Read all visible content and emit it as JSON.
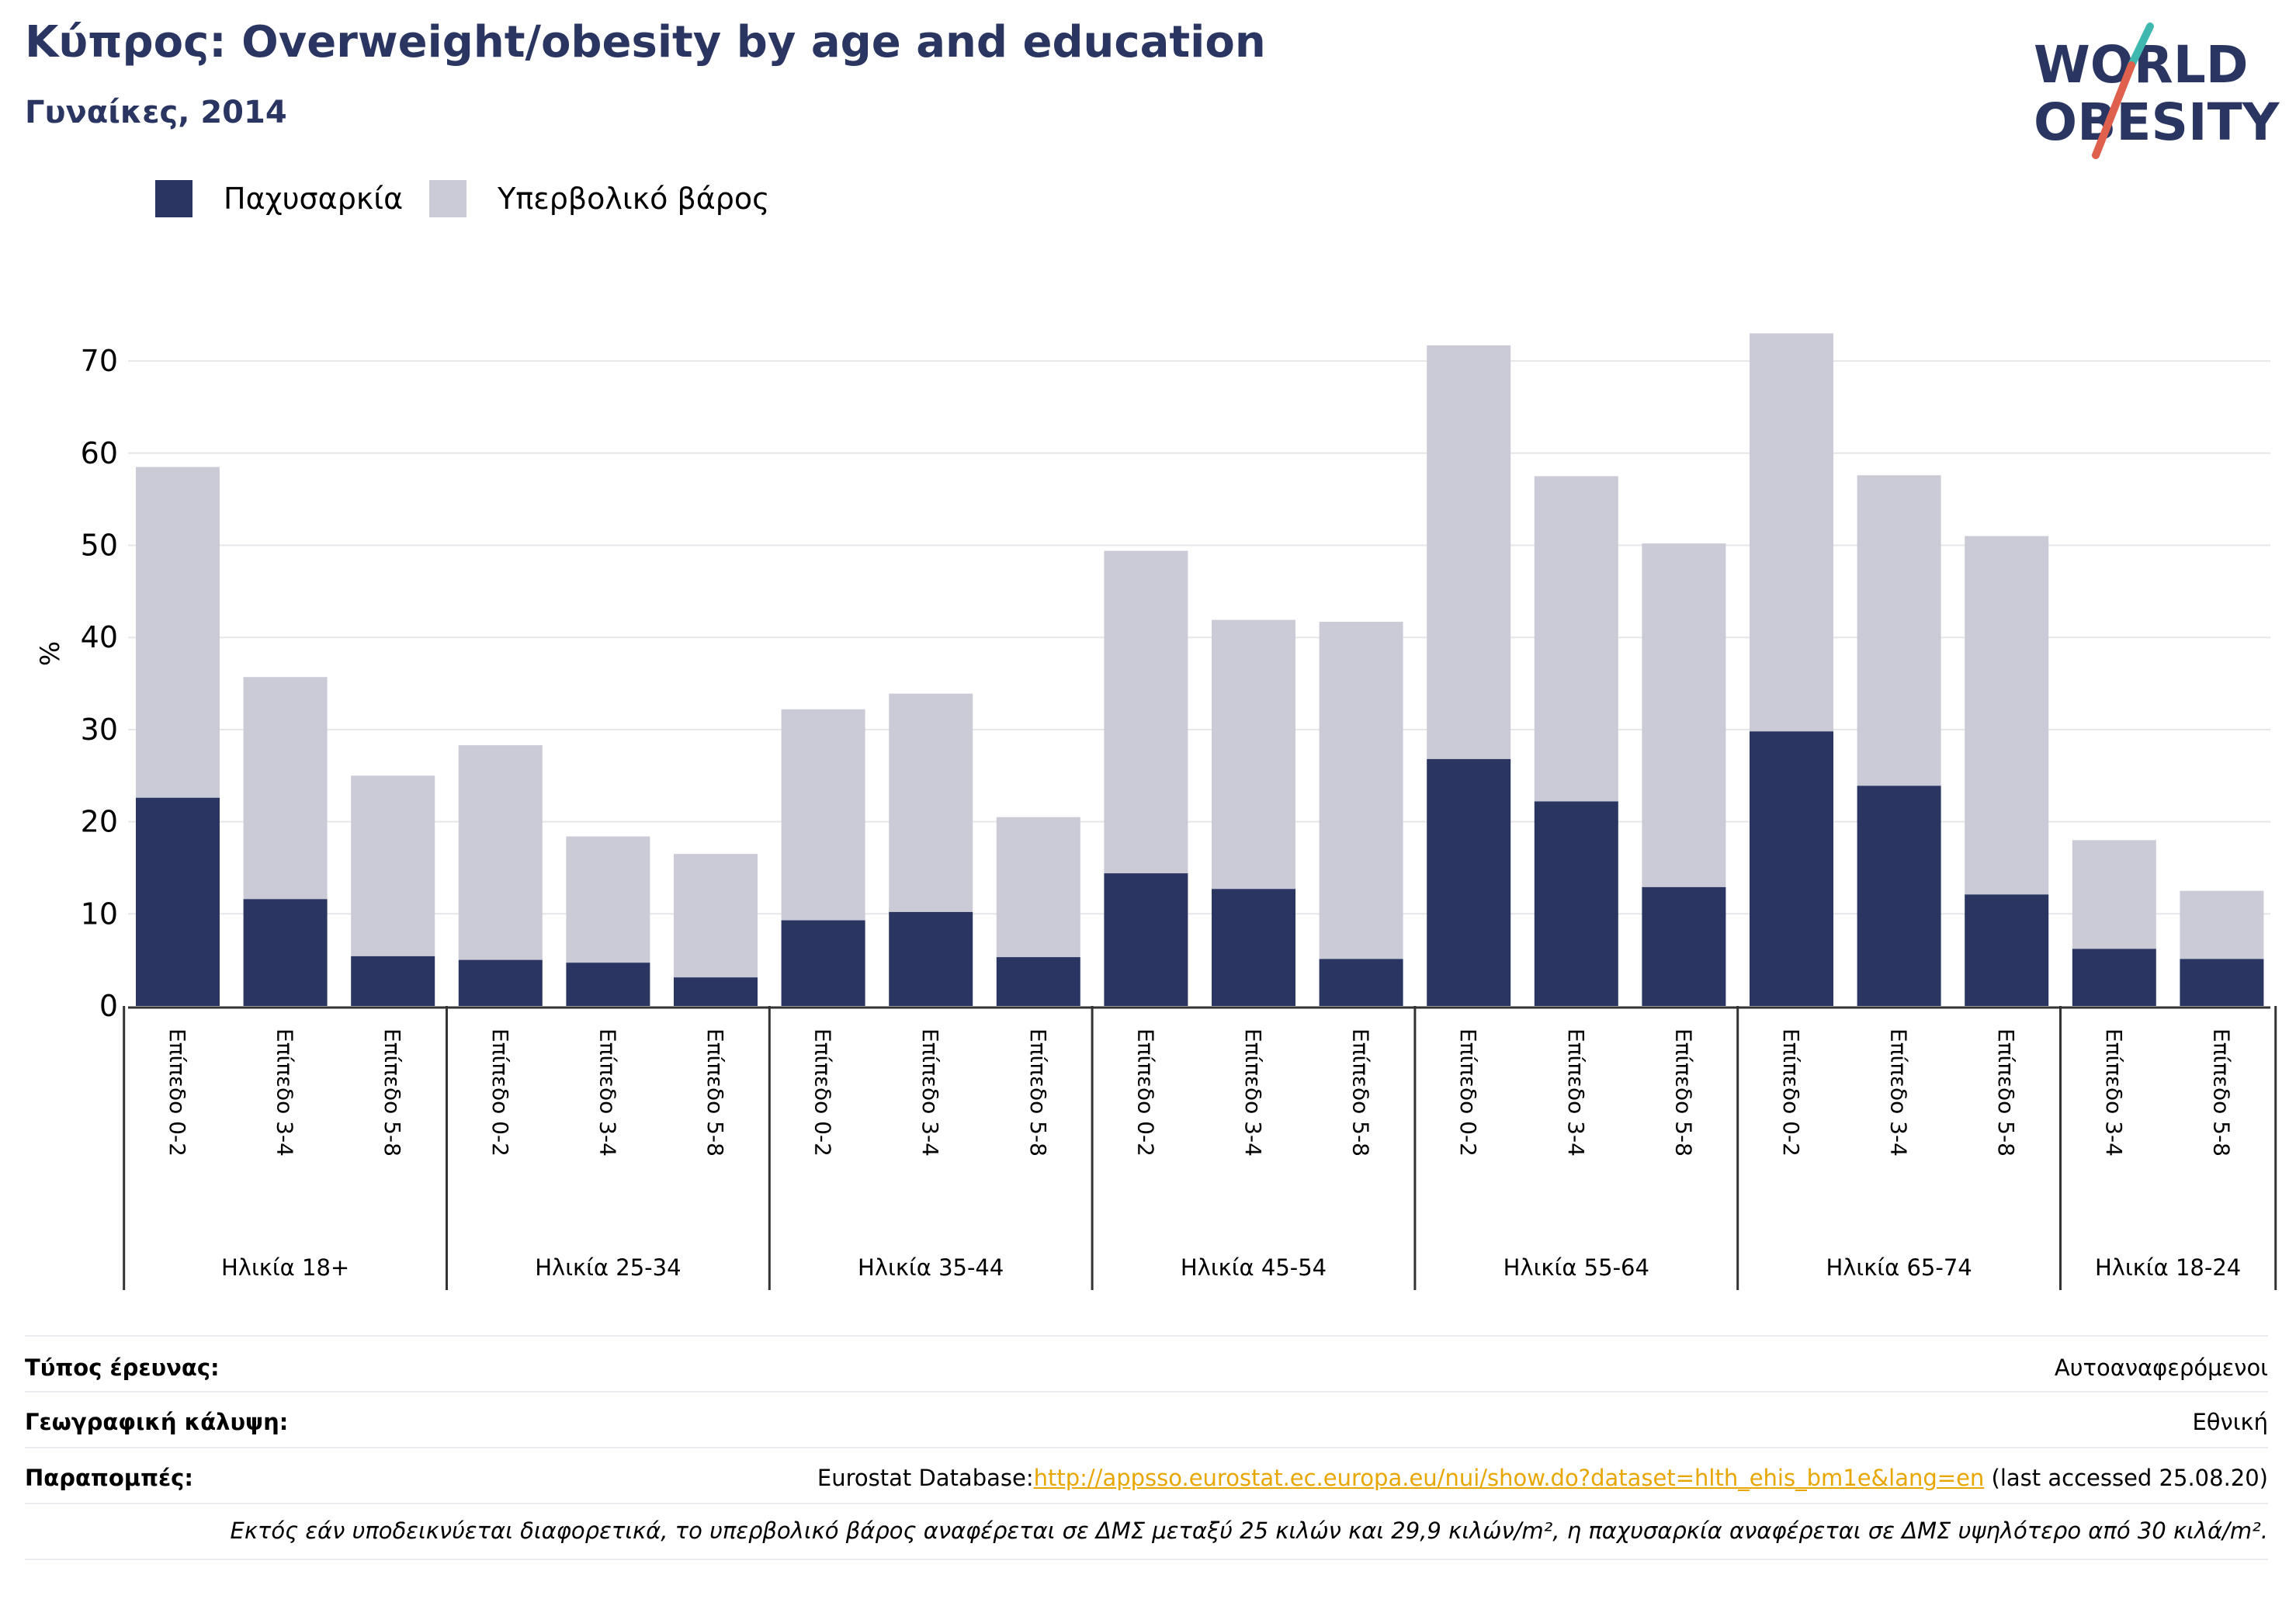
{
  "header": {
    "title": "Κύπρος: Overweight/obesity by age and education",
    "subtitle": "Γυναίκες, 2014"
  },
  "logo": {
    "line1": "WORLD",
    "line2": "OBESITY"
  },
  "colors": {
    "obesity": "#2a3561",
    "overweight": "#cacbd7",
    "accent": "#e8a600",
    "slash_teal": "#3fb8b0",
    "slash_red": "#e0604e"
  },
  "chart_data": {
    "type": "bar",
    "stacked": true,
    "ylabel": "%",
    "ylim": [
      0,
      75
    ],
    "yticks": [
      0,
      10,
      20,
      30,
      40,
      50,
      60,
      70
    ],
    "grid": true,
    "legend_position": "top-left",
    "groups": [
      {
        "label": "Ηλικία 18+",
        "categories": [
          "Επίπεδο 0-2",
          "Επίπεδο 3-4",
          "Επίπεδο 5-8"
        ]
      },
      {
        "label": "Ηλικία 25-34",
        "categories": [
          "Επίπεδο 0-2",
          "Επίπεδο 3-4",
          "Επίπεδο 5-8"
        ]
      },
      {
        "label": "Ηλικία 35-44",
        "categories": [
          "Επίπεδο 0-2",
          "Επίπεδο 3-4",
          "Επίπεδο 5-8"
        ]
      },
      {
        "label": "Ηλικία 45-54",
        "categories": [
          "Επίπεδο 0-2",
          "Επίπεδο 3-4",
          "Επίπεδο 5-8"
        ]
      },
      {
        "label": "Ηλικία 55-64",
        "categories": [
          "Επίπεδο 0-2",
          "Επίπεδο 3-4",
          "Επίπεδο 5-8"
        ]
      },
      {
        "label": "Ηλικία 65-74",
        "categories": [
          "Επίπεδο 0-2",
          "Επίπεδο 3-4",
          "Επίπεδο 5-8"
        ]
      },
      {
        "label": "Ηλικία 18-24",
        "categories": [
          "Επίπεδο 3-4",
          "Επίπεδο 5-8"
        ]
      }
    ],
    "series": [
      {
        "name": "Παχυσαρκία",
        "values": [
          22.6,
          11.6,
          5.4,
          5.0,
          4.7,
          3.1,
          9.3,
          10.2,
          5.3,
          14.4,
          12.7,
          5.1,
          26.8,
          22.2,
          12.9,
          29.8,
          23.9,
          12.1,
          6.2,
          5.1
        ]
      },
      {
        "name": "Υπερβολικό βάρος",
        "values": [
          35.9,
          24.1,
          19.6,
          23.3,
          13.7,
          13.4,
          22.9,
          23.7,
          15.2,
          35.0,
          29.2,
          36.6,
          44.9,
          35.3,
          37.3,
          43.2,
          33.7,
          38.9,
          11.8,
          7.4
        ]
      }
    ]
  },
  "footer": {
    "survey_type_label": "Τύπος έρευνας:",
    "survey_type_value": "Αυτοαναφερόμενοι",
    "coverage_label": "Γεωγραφική κάλυψη:",
    "coverage_value": "Εθνική",
    "references_label": "Παραπομπές:",
    "references_prefix": "Eurostat Database:",
    "references_link": "http://appsso.eurostat.ec.europa.eu/nui/show.do?dataset=hlth_ehis_bm1e&lang=en",
    "references_suffix": " (last accessed 25.08.20)",
    "note": "Εκτός εάν υποδεικνύεται διαφορετικά, το υπερβολικό βάρος αναφέρεται σε ΔΜΣ μεταξύ 25 κιλών και 29,9 κιλών/m², η παχυσαρκία αναφέρεται σε ΔΜΣ υψηλότερο από 30 κιλά/m²."
  }
}
